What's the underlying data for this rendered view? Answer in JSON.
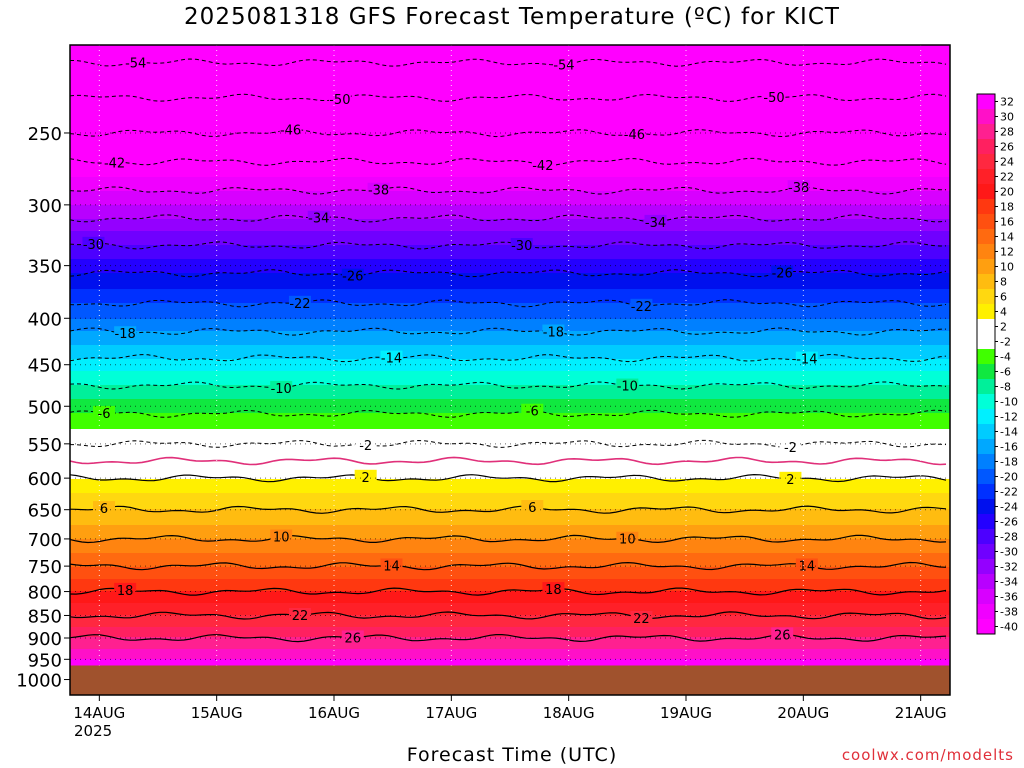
{
  "title": "2025081318 GFS Forecast Temperature (ºC) for KICT",
  "xlabel": "Forecast Time (UTC)",
  "credit": "coolwx.com/modelts",
  "year_label": "2025",
  "colors": {
    "ground": "#a0522d",
    "freezing_line": "#e0307a",
    "credit": "#e0303a"
  },
  "chart_data": {
    "type": "heatmap",
    "title": "2025081318 GFS Forecast Temperature (ºC) for KICT",
    "xlabel": "Forecast Time (UTC)",
    "ylabel": "",
    "x_tick_labels": [
      "14AUG",
      "15AUG",
      "16AUG",
      "17AUG",
      "18AUG",
      "19AUG",
      "20AUG",
      "21AUG"
    ],
    "x_range_days": [
      13.75,
      21.25
    ],
    "y_tick_labels": [
      "250",
      "300",
      "350",
      "400",
      "450",
      "500",
      "550",
      "600",
      "650",
      "700",
      "750",
      "800",
      "850",
      "900",
      "950",
      "1000"
    ],
    "y_range_hpa": [
      200,
      1040
    ],
    "y_scale": "log",
    "grid": true,
    "surface_pressure_hpa": 965,
    "profile": [
      {
        "p": 200,
        "t": -56
      },
      {
        "p": 250,
        "t": -46
      },
      {
        "p": 300,
        "t": -36
      },
      {
        "p": 350,
        "t": -27
      },
      {
        "p": 400,
        "t": -20
      },
      {
        "p": 450,
        "t": -13
      },
      {
        "p": 500,
        "t": -7
      },
      {
        "p": 550,
        "t": -2
      },
      {
        "p": 600,
        "t": 2
      },
      {
        "p": 650,
        "t": 6
      },
      {
        "p": 700,
        "t": 10
      },
      {
        "p": 750,
        "t": 14
      },
      {
        "p": 800,
        "t": 18
      },
      {
        "p": 850,
        "t": 22
      },
      {
        "p": 900,
        "t": 26
      },
      {
        "p": 950,
        "t": 30
      },
      {
        "p": 1000,
        "t": 33
      }
    ],
    "contours_dashed": [
      -54,
      -50,
      -46,
      -42,
      -38,
      -34,
      -30,
      -26,
      -22,
      -18,
      -14,
      -10,
      -6,
      -2
    ],
    "contours_solid": [
      2,
      6,
      10,
      14,
      18,
      22,
      26
    ],
    "contour_label_days": [
      [
        13.95,
        14.4
      ],
      [
        15.55,
        15.95
      ],
      [
        16.05,
        16.6
      ],
      [
        17.6,
        18.05
      ],
      [
        18.5,
        18.8
      ],
      [
        19.75,
        20.1
      ]
    ],
    "colorbar": {
      "labels": [
        "32",
        "30",
        "28",
        "26",
        "24",
        "22",
        "20",
        "18",
        "16",
        "14",
        "12",
        "10",
        "8",
        "6",
        "4",
        "2",
        "-2",
        "-4",
        "-6",
        "-8",
        "-10",
        "-12",
        "-14",
        "-16",
        "-18",
        "-20",
        "-22",
        "-24",
        "-26",
        "-28",
        "-30",
        "-32",
        "-34",
        "-36",
        "-38",
        "-40"
      ],
      "colors": [
        "#ff00ff",
        "#ff10c8",
        "#ff2090",
        "#ff2060",
        "#ff2840",
        "#ff2028",
        "#ff1818",
        "#ff3810",
        "#ff5010",
        "#ff6a10",
        "#ff8410",
        "#ff9f10",
        "#ffbc10",
        "#ffd810",
        "#fff000",
        "#ffffff",
        "#ffffff",
        "#40ff00",
        "#10e840",
        "#00f09a",
        "#00ffd8",
        "#00f0ff",
        "#00ccff",
        "#00a8ff",
        "#0080ff",
        "#0058ff",
        "#0030ff",
        "#0010ee",
        "#2400ff",
        "#4c00ff",
        "#7000ff",
        "#9400ff",
        "#b800ff",
        "#d800ff",
        "#f000ff",
        "#ff00ff"
      ]
    }
  }
}
